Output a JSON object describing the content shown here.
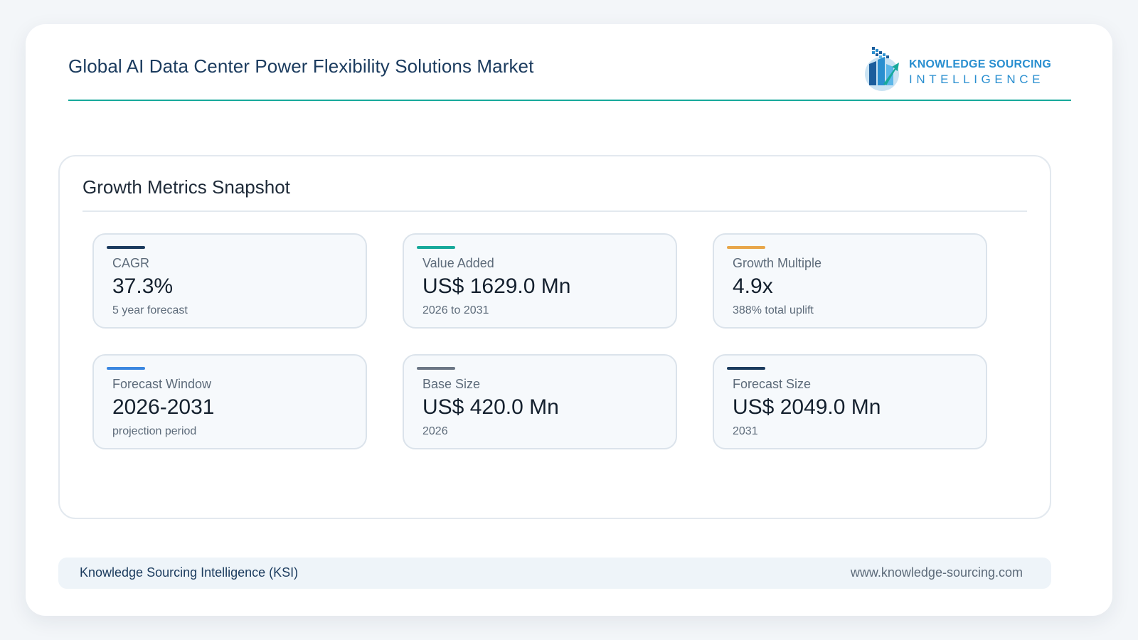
{
  "header": {
    "title": "Global AI Data Center Power Flexibility Solutions Market",
    "logo_line1": "KNOWLEDGE SOURCING",
    "logo_line2": "INTELLIGENCE"
  },
  "panel": {
    "title": "Growth Metrics Snapshot",
    "metrics": [
      {
        "label": "CAGR",
        "value": "37.3%",
        "sub": "5 year forecast",
        "accent": "#1b3b5e"
      },
      {
        "label": "Value Added",
        "value": "US$ 1629.0 Mn",
        "sub": "2026 to 2031",
        "accent": "#17a99b"
      },
      {
        "label": "Growth Multiple",
        "value": "4.9x",
        "sub": "388% total uplift",
        "accent": "#e8a64a"
      },
      {
        "label": "Forecast Window",
        "value": "2026-2031",
        "sub": "projection period",
        "accent": "#3a86e0"
      },
      {
        "label": "Base Size",
        "value": "US$ 420.0 Mn",
        "sub": "2026",
        "accent": "#6b7685"
      },
      {
        "label": "Forecast Size",
        "value": "US$ 2049.0 Mn",
        "sub": "2031",
        "accent": "#1b3b5e"
      }
    ]
  },
  "footer": {
    "left": "Knowledge Sourcing Intelligence (KSI)",
    "right": "www.knowledge-sourcing.com"
  },
  "colors": {
    "brand_blue": "#2a8fd0",
    "brand_navy": "#1b3b5e",
    "teal_rule": "#17a99b"
  }
}
